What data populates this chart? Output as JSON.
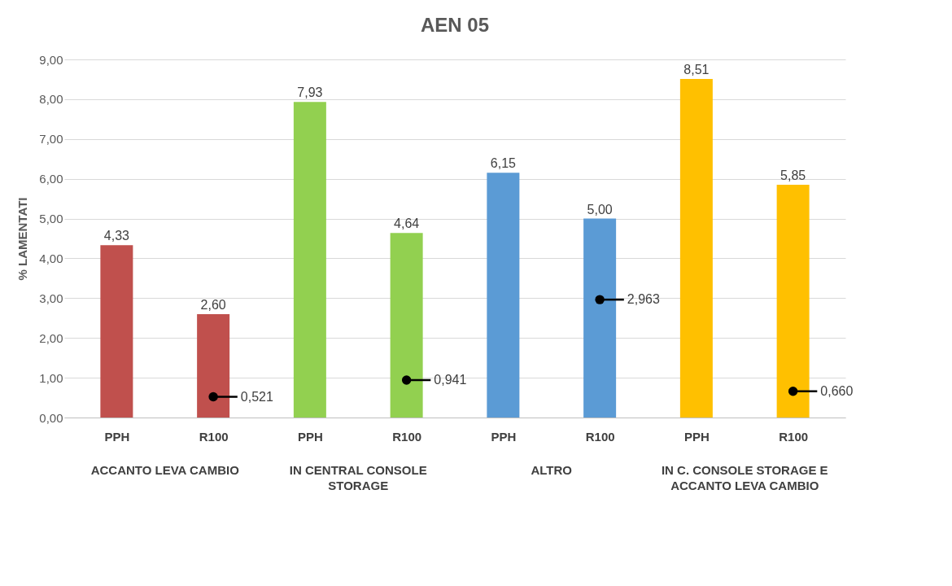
{
  "chart_data": {
    "type": "bar",
    "title": "AEN 05",
    "ylabel": "% LAMENTATI",
    "categories": [
      "PPH",
      "R100",
      "PPH",
      "R100",
      "PPH",
      "R100",
      "PPH",
      "R100"
    ],
    "series": [
      {
        "values": [
          4.33,
          2.6,
          7.93,
          4.64,
          6.15,
          5.0,
          8.51,
          5.85
        ],
        "colors": [
          "#c0504d",
          "#c0504d",
          "#92d050",
          "#92d050",
          "#5b9bd5",
          "#5b9bd5",
          "#ffc000",
          "#ffc000"
        ],
        "value_labels": [
          "4,33",
          "2,60",
          "7,93",
          "4,64",
          "6,15",
          "5,00",
          "8,51",
          "5,85"
        ]
      },
      {
        "type": "scatter",
        "color": "#000000",
        "values": [
          null,
          0.521,
          null,
          0.941,
          null,
          2.963,
          null,
          0.66
        ],
        "value_labels": [
          null,
          "0,521",
          null,
          "0,941",
          null,
          "2,963",
          null,
          "0,660"
        ]
      }
    ],
    "annotations": [
      "ACCANTO LEVA CAMBIO",
      "IN CENTRAL CONSOLE STORAGE",
      "ALTRO",
      "IN C. CONSOLE STORAGE E ACCANTO LEVA CAMBIO"
    ],
    "ylim": [
      0,
      9
    ],
    "yticks": [
      {
        "value": 0,
        "label": "0,00"
      },
      {
        "value": 1,
        "label": "1,00"
      },
      {
        "value": 2,
        "label": "2,00"
      },
      {
        "value": 3,
        "label": "3,00"
      },
      {
        "value": 4,
        "label": "4,00"
      },
      {
        "value": 5,
        "label": "5,00"
      },
      {
        "value": 6,
        "label": "6,00"
      },
      {
        "value": 7,
        "label": "7,00"
      },
      {
        "value": 8,
        "label": "8,00"
      },
      {
        "value": 9,
        "label": "9,00"
      }
    ],
    "grid": "y",
    "marker": "circle"
  }
}
